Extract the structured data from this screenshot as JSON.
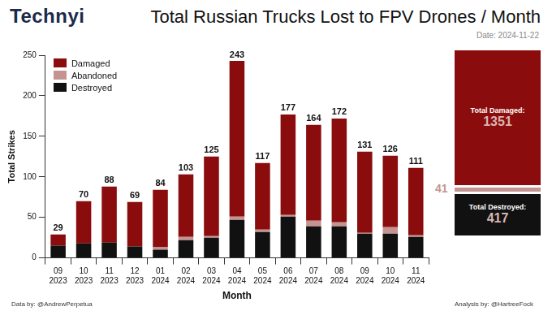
{
  "logo": "Technyi",
  "footer": {
    "left": "Data by: @AndrewPerpetua",
    "right": "Analysis by: @HartreeFock"
  },
  "chart_data": {
    "type": "bar",
    "title": "Total Russian Trucks Lost to FPV Drones / Month",
    "subtitle": "Date: 2024-11-22",
    "x_label": "Month",
    "y_label": "Total Strikes",
    "categories": [
      [
        "09",
        "2023"
      ],
      [
        "10",
        "2023"
      ],
      [
        "11",
        "2023"
      ],
      [
        "12",
        "2023"
      ],
      [
        "01",
        "2024"
      ],
      [
        "02",
        "2024"
      ],
      [
        "03",
        "2024"
      ],
      [
        "04",
        "2024"
      ],
      [
        "05",
        "2024"
      ],
      [
        "06",
        "2024"
      ],
      [
        "07",
        "2024"
      ],
      [
        "08",
        "2024"
      ],
      [
        "09",
        "2024"
      ],
      [
        "10",
        "2024"
      ],
      [
        "11",
        "2024"
      ]
    ],
    "series": [
      {
        "name": "Damaged",
        "color": "#8b0c0c",
        "values": [
          14,
          52,
          69,
          55,
          71,
          77,
          98,
          192,
          82,
          124,
          118,
          128,
          100,
          88,
          83
        ]
      },
      {
        "name": "Abandoned",
        "color": "#c49590",
        "values": [
          0,
          0,
          0,
          0,
          3,
          4,
          2,
          4,
          3,
          2,
          7,
          5,
          1,
          8,
          2
        ]
      },
      {
        "name": "Destroyed",
        "color": "#111111",
        "values": [
          15,
          18,
          19,
          14,
          10,
          22,
          25,
          47,
          32,
          51,
          39,
          39,
          30,
          30,
          26
        ]
      }
    ],
    "totals": [
      29,
      70,
      88,
      69,
      84,
      103,
      125,
      243,
      117,
      177,
      164,
      172,
      131,
      126,
      111
    ],
    "stacked": true,
    "legend": "upper left",
    "grid": false,
    "ylim": [
      0,
      250
    ],
    "yticks": [
      0,
      50,
      100,
      150,
      200,
      250
    ]
  },
  "summary": [
    {
      "label": "Total Damaged:",
      "value": 1351
    },
    {
      "value": 41
    },
    {
      "label": "Total Destroyed:",
      "value": 417
    }
  ]
}
